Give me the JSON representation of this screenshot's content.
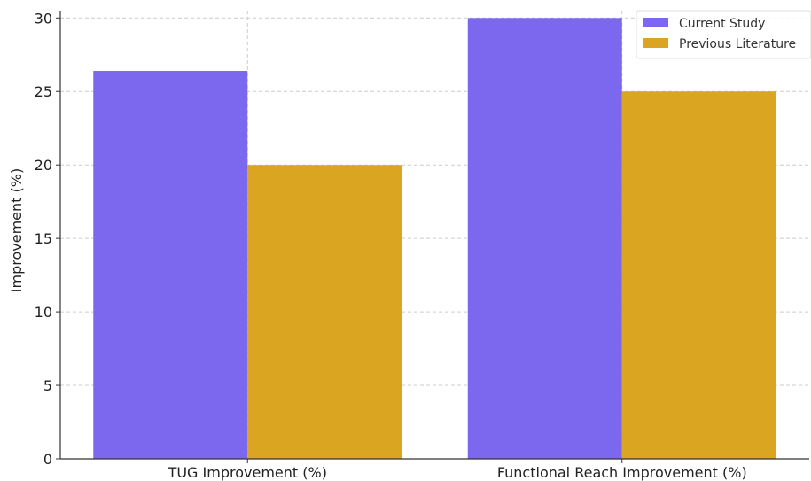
{
  "chart_data": {
    "type": "bar",
    "categories": [
      "TUG Improvement (%)",
      "Functional Reach Improvement (%)"
    ],
    "series": [
      {
        "name": "Current Study",
        "values": [
          26.4,
          30
        ],
        "color": "#7b68ee"
      },
      {
        "name": "Previous Literature",
        "values": [
          20,
          25
        ],
        "color": "#daa520"
      }
    ],
    "title": "",
    "xlabel": "",
    "ylabel": "Improvement (%)",
    "ylim": [
      0,
      30.5
    ],
    "yticks": [
      0,
      5,
      10,
      15,
      20,
      25,
      30
    ],
    "ytick_labels": [
      "0",
      "5",
      "10",
      "15",
      "20",
      "25",
      "30"
    ],
    "grid": true,
    "legend_position": "top-right"
  }
}
